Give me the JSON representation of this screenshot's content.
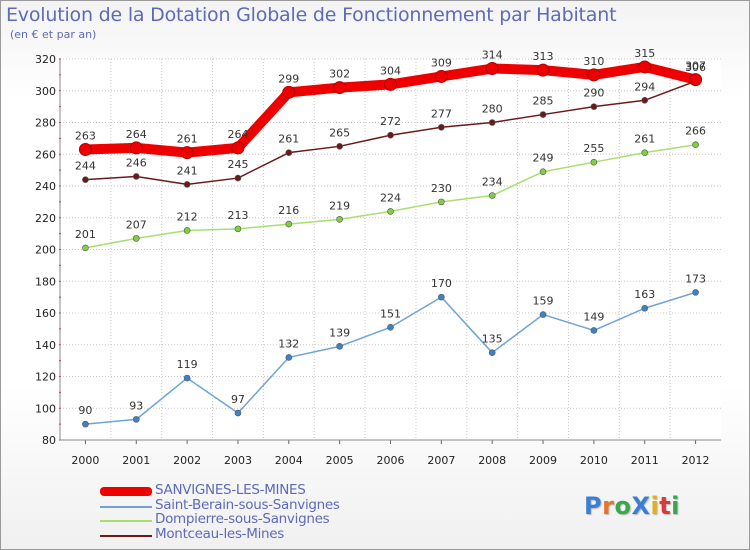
{
  "header": {
    "title": "Evolution de la Dotation Globale de Fonctionnement par Habitant",
    "subtitle": "(en € et par an)"
  },
  "brand": {
    "text": "ProXiti",
    "letters": [
      "P",
      "r",
      "o",
      "X",
      "i",
      "t",
      "i"
    ],
    "letter_colors": [
      "#3b7fd4",
      "#e8732a",
      "#3aa84a",
      "#3b7fd4",
      "#e0b020",
      "#d83a3a",
      "#3aa84a"
    ]
  },
  "chart_data": {
    "type": "line",
    "title": "Evolution de la Dotation Globale de Fonctionnement par Habitant",
    "subtitle": "(en € et par an)",
    "xlabel": "",
    "ylabel": "",
    "categories": [
      "2000",
      "2001",
      "2002",
      "2003",
      "2004",
      "2005",
      "2006",
      "2007",
      "2008",
      "2009",
      "2010",
      "2011",
      "2012"
    ],
    "ylim": [
      80,
      320
    ],
    "yticks": [
      80,
      100,
      120,
      140,
      160,
      180,
      200,
      220,
      240,
      260,
      280,
      300,
      320
    ],
    "grid": true,
    "legend_position": "bottom-left",
    "series": [
      {
        "name": "Montceau-les-Mines",
        "color": "#6b1a1a",
        "marker_color": "#6b1a1a",
        "style": "thin",
        "values": [
          244,
          246,
          241,
          245,
          261,
          265,
          272,
          277,
          280,
          285,
          290,
          294,
          306
        ]
      },
      {
        "name": "Dompierre-sous-Sanvignes",
        "color": "#a8df70",
        "marker_color": "#7fcf3f",
        "style": "thin",
        "values": [
          201,
          207,
          212,
          213,
          216,
          219,
          224,
          230,
          234,
          249,
          255,
          261,
          266
        ]
      },
      {
        "name": "Saint-Berain-sous-Sanvignes",
        "color": "#6fa3d6",
        "marker_color": "#3d82c8",
        "style": "thin",
        "values": [
          90,
          93,
          119,
          97,
          132,
          139,
          151,
          170,
          135,
          159,
          149,
          163,
          173
        ]
      },
      {
        "name": "SANVIGNES-LES-MINES",
        "color": "#ee0000",
        "marker_color": "#ee0000",
        "style": "thick",
        "values": [
          263,
          264,
          261,
          264,
          299,
          302,
          304,
          309,
          314,
          313,
          310,
          315,
          307
        ]
      }
    ],
    "legend_order": [
      "SANVIGNES-LES-MINES",
      "Saint-Berain-sous-Sanvignes",
      "Dompierre-sous-Sanvignes",
      "Montceau-les-Mines"
    ]
  }
}
